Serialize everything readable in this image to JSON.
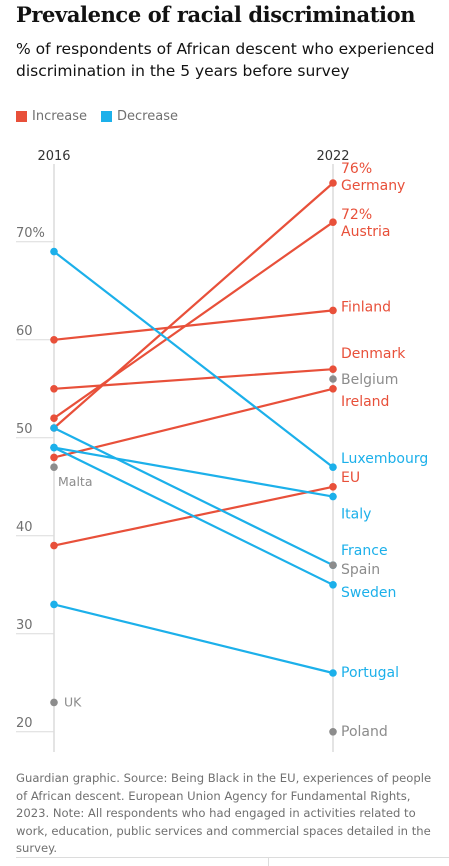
{
  "chart_data": {
    "type": "line",
    "title": "Prevalence of racial discrimination",
    "subtitle": "% of respondents of African descent who experienced discrimination in the 5 years before survey",
    "x": [
      "2016",
      "2022"
    ],
    "y_ticks": [
      {
        "value": 20,
        "label": "20"
      },
      {
        "value": 30,
        "label": "30"
      },
      {
        "value": 40,
        "label": "40"
      },
      {
        "value": 50,
        "label": "50"
      },
      {
        "value": 60,
        "label": "60"
      },
      {
        "value": 70,
        "label": "70%"
      }
    ],
    "ylim": [
      18,
      77
    ],
    "legend": [
      {
        "label": "Increase",
        "color": "#e8503a"
      },
      {
        "label": "Decrease",
        "color": "#1cb0ea"
      }
    ],
    "colors": {
      "increase": "#e8503a",
      "decrease": "#1cb0ea",
      "single": "#8c8c8c"
    },
    "series": [
      {
        "name": "Germany",
        "values": [
          51,
          76
        ],
        "trend": "increase",
        "value_label": "76%"
      },
      {
        "name": "Austria",
        "values": [
          52,
          72
        ],
        "trend": "increase",
        "value_label": "72%"
      },
      {
        "name": "Finland",
        "values": [
          60,
          63
        ],
        "trend": "increase"
      },
      {
        "name": "Denmark",
        "values": [
          55,
          57
        ],
        "trend": "increase"
      },
      {
        "name": "Belgium",
        "values": [
          null,
          56
        ],
        "trend": "single"
      },
      {
        "name": "Ireland",
        "values": [
          48,
          55
        ],
        "trend": "increase"
      },
      {
        "name": "Luxembourg",
        "values": [
          69,
          47
        ],
        "trend": "decrease"
      },
      {
        "name": "EU",
        "values": [
          39,
          45
        ],
        "trend": "increase"
      },
      {
        "name": "Italy",
        "values": [
          49,
          44
        ],
        "trend": "decrease"
      },
      {
        "name": "France",
        "values": [
          51,
          37
        ],
        "trend": "decrease"
      },
      {
        "name": "Spain",
        "values": [
          null,
          37
        ],
        "trend": "single"
      },
      {
        "name": "Sweden",
        "values": [
          49,
          35
        ],
        "trend": "decrease"
      },
      {
        "name": "Portugal",
        "values": [
          33,
          26
        ],
        "trend": "decrease"
      },
      {
        "name": "Poland",
        "values": [
          null,
          20
        ],
        "trend": "single"
      },
      {
        "name": "Malta",
        "values": [
          47,
          null
        ],
        "trend": "single"
      },
      {
        "name": "UK",
        "values": [
          23,
          null
        ],
        "trend": "single"
      }
    ]
  },
  "legend_labels": {
    "increase": "Increase",
    "decrease": "Decrease"
  },
  "footer": "Guardian graphic. Source: Being Black in the EU, experiences of people of African descent. European Union Agency for Fundamental Rights, 2023. Note: All respondents who had engaged in activities related to work, education, public services and commercial spaces detailed in the survey."
}
